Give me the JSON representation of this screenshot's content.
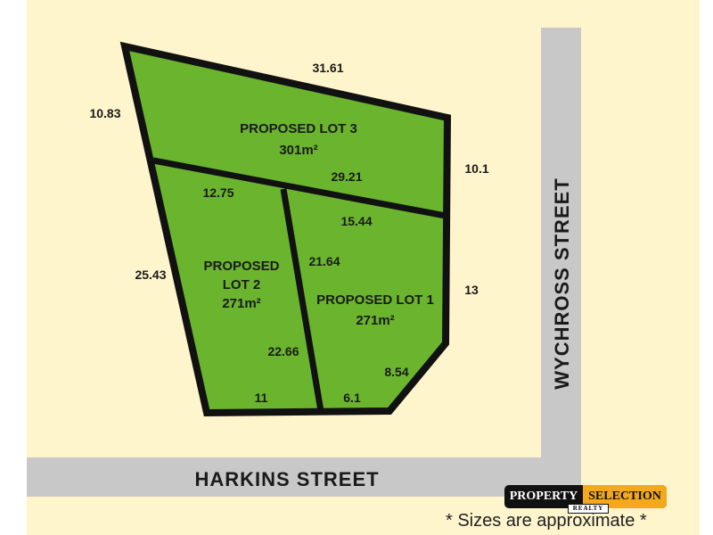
{
  "lots": [
    {
      "name": "PROPOSED LOT 3",
      "area": "301m²"
    },
    {
      "name_line1": "PROPOSED",
      "name_line2": "LOT 2",
      "area": "271m²"
    },
    {
      "name": "PROPOSED LOT 1",
      "area": "271m²"
    }
  ],
  "dimensions": {
    "lot3_top": "31.61",
    "lot3_left": "10.83",
    "lot3_right": "10.1",
    "lot3_bottom": "29.21",
    "lot2_top": "12.75",
    "lot2_left": "25.43",
    "lot2_right": "22.66",
    "lot2_bottom": "11",
    "lot1_top": "15.44",
    "lot1_left": "21.64",
    "lot1_right": "13",
    "lot1_corner": "8.54",
    "lot1_bottom": "6.1"
  },
  "streets": {
    "horizontal": "HARKINS STREET",
    "vertical": "WYCHROSS STREET"
  },
  "logo": {
    "part1": "PROPERTY",
    "part2": "SELECTION",
    "sub": "REALTY"
  },
  "note": "* Sizes are approximate *",
  "colors": {
    "background": "#fff5cc",
    "lot": "#6ab42e",
    "road": "#c8c8c8",
    "boundary": "#111111",
    "logo_accent": "#f3a81e"
  }
}
